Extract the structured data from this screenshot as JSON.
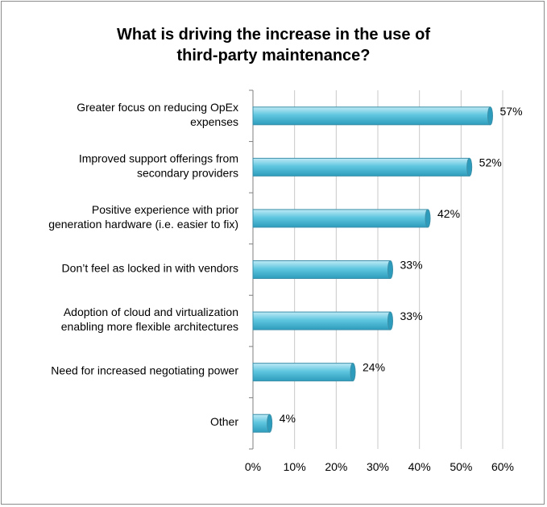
{
  "chart_data": {
    "type": "bar",
    "orientation": "horizontal",
    "title_lines": [
      "What is driving the increase in the use of",
      "third-party maintenance?"
    ],
    "categories": [
      [
        "Greater focus on reducing OpEx",
        "expenses"
      ],
      [
        "Improved support offerings from",
        "secondary providers"
      ],
      [
        "Positive experience with prior",
        "generation hardware (i.e. easier to fix)"
      ],
      [
        "Don’t feel as locked in with vendors"
      ],
      [
        "Adoption of cloud and virtualization",
        "enabling more flexible architectures"
      ],
      [
        "Need for increased negotiating power"
      ],
      [
        "Other"
      ]
    ],
    "values": [
      57,
      52,
      42,
      33,
      33,
      24,
      4
    ],
    "data_labels": [
      "57%",
      "52%",
      "42%",
      "33%",
      "33%",
      "24%",
      "4%"
    ],
    "x_ticks": [
      "0%",
      "10%",
      "20%",
      "30%",
      "40%",
      "50%",
      "60%"
    ],
    "xlim": [
      0,
      60
    ],
    "grid": true,
    "legend": "none",
    "colors": {
      "bar_light": "#bfeaf6",
      "bar_mid": "#5fc6df",
      "bar_dark": "#2d9cbc",
      "bar_stroke": "#3b8fa8",
      "grid": "#c8c8c8",
      "axis": "#7f7f7f"
    }
  }
}
